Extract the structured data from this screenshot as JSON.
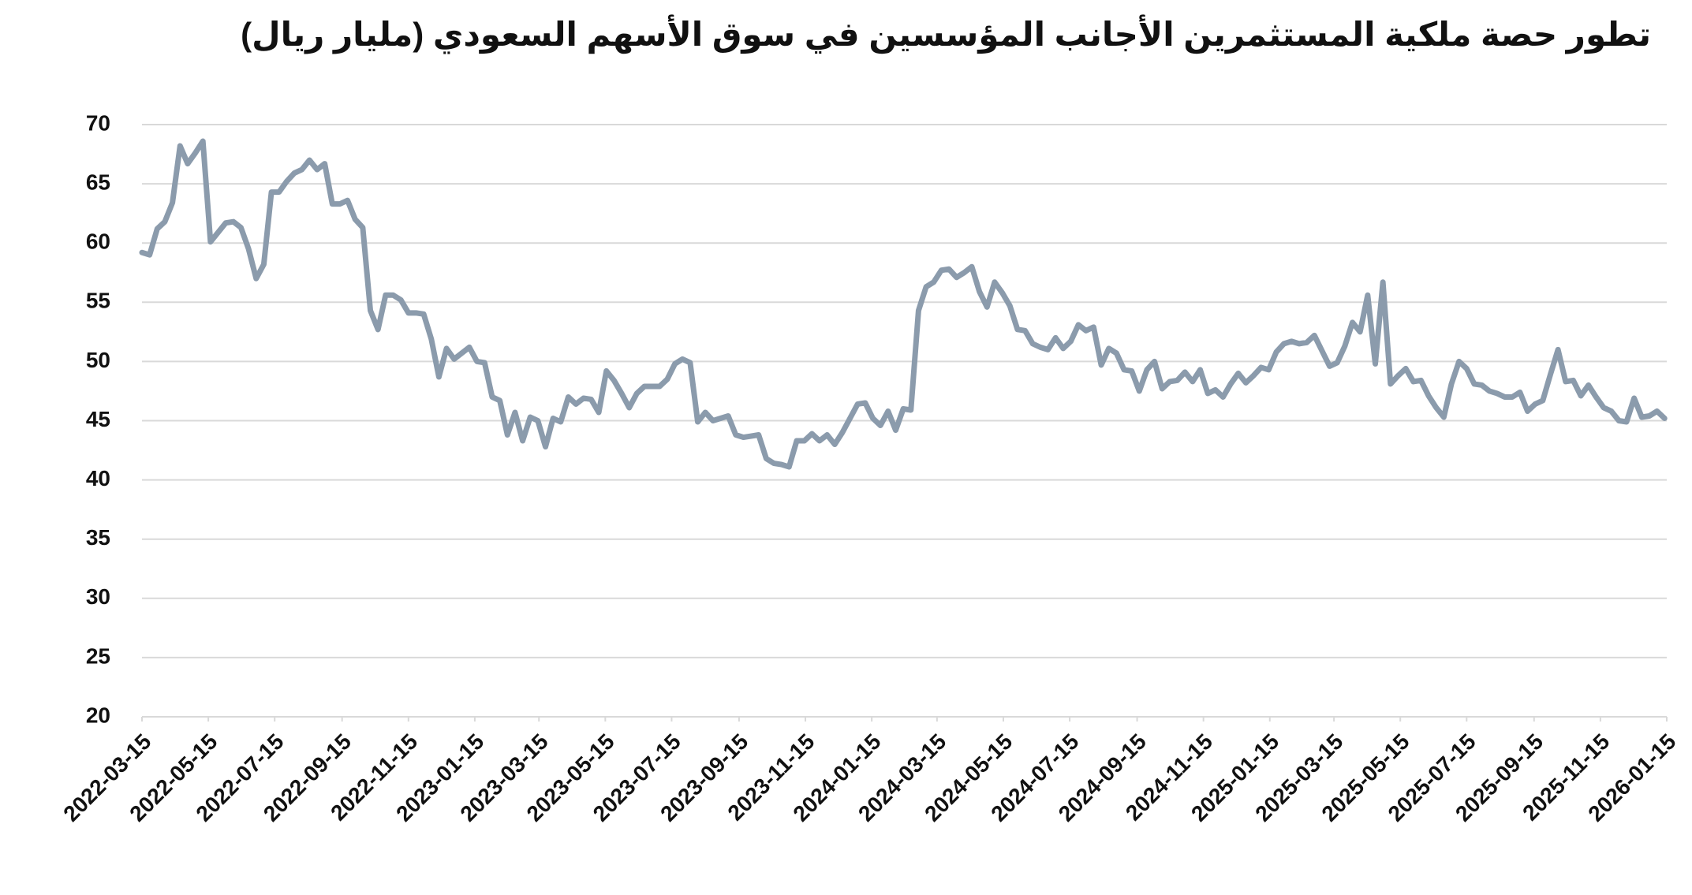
{
  "chart_data": {
    "type": "line",
    "title": "تطور حصة ملكية المستثمرين الأجانب المؤسسين في سوق الأسهم السعودي (مليار ريال)",
    "x": [
      "2022-03-15",
      "2022-03-22",
      "2022-03-29",
      "2022-04-05",
      "2022-04-12",
      "2022-04-19",
      "2022-04-26",
      "2022-05-03",
      "2022-05-10",
      "2022-05-17",
      "2022-05-24",
      "2022-05-31",
      "2022-06-07",
      "2022-06-14",
      "2022-06-21",
      "2022-06-28",
      "2022-07-05",
      "2022-07-12",
      "2022-07-19",
      "2022-07-26",
      "2022-08-02",
      "2022-08-09",
      "2022-08-16",
      "2022-08-23",
      "2022-08-30",
      "2022-09-06",
      "2022-09-13",
      "2022-09-20",
      "2022-09-27",
      "2022-10-04",
      "2022-10-11",
      "2022-10-18",
      "2022-10-25",
      "2022-11-01",
      "2022-11-08",
      "2022-11-15",
      "2022-11-22",
      "2022-11-29",
      "2022-12-06",
      "2022-12-13",
      "2022-12-20",
      "2022-12-27",
      "2023-01-03",
      "2023-01-10",
      "2023-01-17",
      "2023-01-24",
      "2023-01-31",
      "2023-02-07",
      "2023-02-14",
      "2023-02-21",
      "2023-02-28",
      "2023-03-07",
      "2023-03-14",
      "2023-03-21",
      "2023-03-28",
      "2023-04-04",
      "2023-04-11",
      "2023-04-18",
      "2023-04-25",
      "2023-05-02",
      "2023-05-09",
      "2023-05-16",
      "2023-05-23",
      "2023-05-30",
      "2023-06-06",
      "2023-06-13",
      "2023-06-20",
      "2023-06-27",
      "2023-07-04",
      "2023-07-11",
      "2023-07-18",
      "2023-07-25",
      "2023-08-01",
      "2023-08-08",
      "2023-08-15",
      "2023-08-22",
      "2023-08-29",
      "2023-09-05",
      "2023-09-12",
      "2023-09-19",
      "2023-09-26",
      "2023-10-03",
      "2023-10-10",
      "2023-10-17",
      "2023-10-24",
      "2023-10-31",
      "2023-11-07",
      "2023-11-14",
      "2023-11-21",
      "2023-11-28",
      "2023-12-05",
      "2023-12-12",
      "2023-12-19",
      "2023-12-26",
      "2024-01-02",
      "2024-01-09",
      "2024-01-16",
      "2024-01-23",
      "2024-01-30",
      "2024-02-06",
      "2024-02-13",
      "2024-02-20",
      "2024-02-27",
      "2024-03-05",
      "2024-03-12",
      "2024-03-19",
      "2024-03-26",
      "2024-04-02",
      "2024-04-09",
      "2024-04-16",
      "2024-04-23",
      "2024-04-30",
      "2024-05-07",
      "2024-05-14",
      "2024-05-21",
      "2024-05-28",
      "2024-06-04",
      "2024-06-11",
      "2024-06-18",
      "2024-06-25",
      "2024-07-02",
      "2024-07-09",
      "2024-07-16",
      "2024-07-23",
      "2024-07-30",
      "2024-08-06",
      "2024-08-13",
      "2024-08-20",
      "2024-08-27",
      "2024-09-03",
      "2024-09-10",
      "2024-09-17",
      "2024-09-24",
      "2024-10-01",
      "2024-10-08",
      "2024-10-15",
      "2024-10-22",
      "2024-10-29",
      "2024-11-05",
      "2024-11-12",
      "2024-11-19",
      "2024-11-26",
      "2024-12-03",
      "2024-12-10",
      "2024-12-17",
      "2024-12-24",
      "2024-12-31",
      "2025-01-07",
      "2025-01-14",
      "2025-01-21",
      "2025-01-28",
      "2025-02-04",
      "2025-02-11",
      "2025-02-18",
      "2025-02-25",
      "2025-03-04",
      "2025-03-11",
      "2025-03-18",
      "2025-03-25",
      "2025-04-01",
      "2025-04-08",
      "2025-04-15",
      "2025-04-22",
      "2025-04-29",
      "2025-05-06",
      "2025-05-13",
      "2025-05-20",
      "2025-05-27",
      "2025-06-03",
      "2025-06-10",
      "2025-06-17",
      "2025-06-24",
      "2025-07-01",
      "2025-07-08",
      "2025-07-15",
      "2025-07-22",
      "2025-07-29",
      "2025-08-05",
      "2025-08-12",
      "2025-08-19",
      "2025-08-26",
      "2025-09-02",
      "2025-09-09",
      "2025-09-16",
      "2025-09-23",
      "2025-09-30",
      "2025-10-07",
      "2025-10-14",
      "2025-10-21",
      "2025-10-28",
      "2025-11-04",
      "2025-11-11",
      "2025-11-18",
      "2025-11-25",
      "2025-12-02",
      "2025-12-09",
      "2025-12-16",
      "2025-12-23",
      "2025-12-30",
      "2026-01-06",
      "2026-01-13"
    ],
    "series": [
      {
        "color": "#8b9bac",
        "values": [
          59.2,
          59.0,
          61.2,
          61.8,
          63.4,
          68.2,
          66.7,
          67.6,
          68.6,
          60.1,
          60.9,
          61.7,
          61.8,
          61.3,
          59.5,
          57.0,
          58.2,
          64.3,
          64.3,
          65.2,
          65.9,
          66.2,
          67.0,
          66.2,
          66.7,
          63.3,
          63.3,
          63.6,
          62.0,
          61.3,
          54.3,
          52.7,
          55.6,
          55.6,
          55.2,
          54.1,
          54.1,
          54.0,
          51.9,
          48.7,
          51.1,
          50.2,
          50.7,
          51.2,
          50.0,
          49.9,
          47.0,
          46.7,
          43.8,
          45.7,
          43.3,
          45.3,
          45.0,
          42.8,
          45.2,
          44.9,
          47.0,
          46.4,
          46.9,
          46.8,
          45.7,
          49.2,
          48.4,
          47.3,
          46.1,
          47.3,
          47.9,
          47.9,
          47.9,
          48.5,
          49.8,
          50.2,
          49.9,
          44.9,
          45.7,
          45.0,
          45.2,
          45.4,
          43.8,
          43.6,
          43.7,
          43.8,
          41.8,
          41.4,
          41.3,
          41.1,
          43.3,
          43.3,
          43.9,
          43.3,
          43.8,
          43.0,
          44.0,
          45.2,
          46.4,
          46.5,
          45.2,
          44.6,
          45.8,
          44.2,
          46.0,
          45.9,
          54.3,
          56.3,
          56.7,
          57.7,
          57.8,
          57.1,
          57.5,
          58.0,
          55.9,
          54.6,
          56.7,
          55.8,
          54.7,
          52.7,
          52.6,
          51.5,
          51.2,
          51.0,
          52.0,
          51.1,
          51.7,
          53.1,
          52.6,
          52.9,
          49.7,
          51.1,
          50.7,
          49.3,
          49.2,
          47.5,
          49.3,
          50.0,
          47.7,
          48.3,
          48.4,
          49.1,
          48.3,
          49.3,
          47.3,
          47.6,
          47.0,
          48.1,
          49.0,
          48.2,
          48.8,
          49.5,
          49.3,
          50.8,
          51.5,
          51.7,
          51.5,
          51.6,
          52.2,
          50.9,
          49.6,
          49.9,
          51.3,
          53.3,
          52.5,
          55.6,
          49.8,
          56.7,
          48.1,
          48.8,
          49.4,
          48.3,
          48.4,
          47.1,
          46.1,
          45.3,
          48.1,
          50.0,
          49.4,
          48.1,
          48.0,
          47.5,
          47.3,
          47.0,
          47.0,
          47.4,
          45.8,
          46.4,
          46.7,
          48.9,
          51.0,
          48.3,
          48.4,
          47.1,
          48.0,
          47.0,
          46.1,
          45.8,
          45.0,
          44.9,
          46.9,
          45.3,
          45.4,
          45.8,
          45.2
        ]
      }
    ],
    "xlim": [
      "2022-03-15",
      "2026-01-15"
    ],
    "xticks": [
      "2022-03-15",
      "2022-05-15",
      "2022-07-15",
      "2022-09-15",
      "2022-11-15",
      "2023-01-15",
      "2023-03-15",
      "2023-05-15",
      "2023-07-15",
      "2023-09-15",
      "2023-11-15",
      "2024-01-15",
      "2024-03-15",
      "2024-05-15",
      "2024-07-15",
      "2024-09-15",
      "2024-11-15",
      "2025-01-15",
      "2025-03-15",
      "2025-05-15",
      "2025-07-15",
      "2025-09-15",
      "2025-11-15",
      "2026-01-15"
    ],
    "ylim": [
      20,
      70
    ],
    "yticks": [
      20,
      25,
      30,
      35,
      40,
      45,
      50,
      55,
      60,
      65,
      70
    ],
    "grid": true
  }
}
